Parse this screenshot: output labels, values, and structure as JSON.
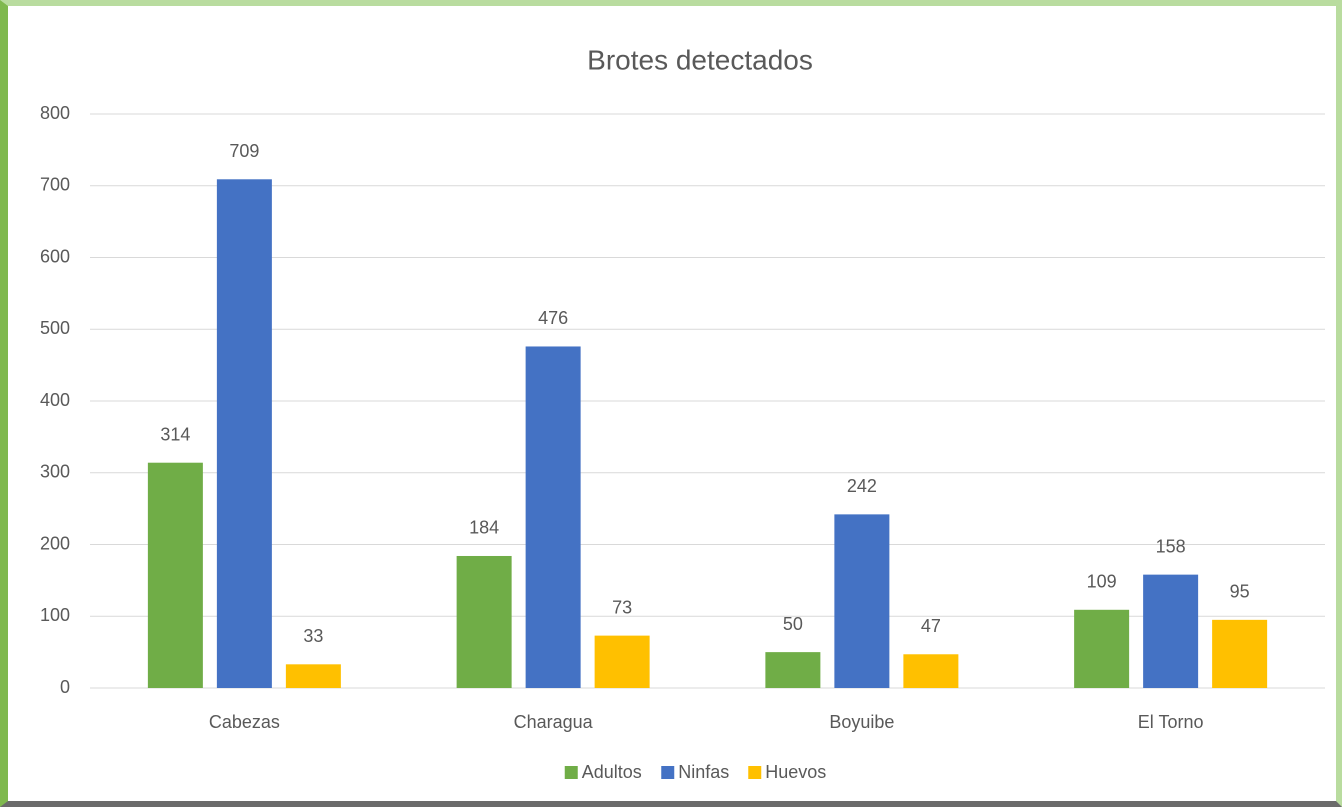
{
  "chart_data": {
    "type": "bar",
    "title": "Brotes detectados",
    "categories": [
      "Cabezas",
      "Charagua",
      "Boyuibe",
      "El Torno"
    ],
    "series": [
      {
        "name": "Adultos",
        "color": "#70ad47",
        "values": [
          314,
          184,
          50,
          109
        ]
      },
      {
        "name": "Ninfas",
        "color": "#4472c4",
        "values": [
          709,
          476,
          242,
          158
        ]
      },
      {
        "name": "Huevos",
        "color": "#ffc000",
        "values": [
          33,
          73,
          47,
          95
        ]
      }
    ],
    "ylim": [
      0,
      800
    ],
    "yticks": [
      0,
      100,
      200,
      300,
      400,
      500,
      600,
      700,
      800
    ],
    "grid": true,
    "legend": "bottom"
  }
}
